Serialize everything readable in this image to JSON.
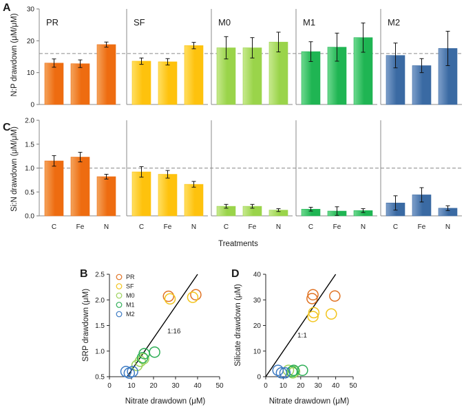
{
  "colors": {
    "PR": "#ee6c10",
    "SF": "#fec20d",
    "M0": "#9ad44a",
    "M1": "#1fb553",
    "M2": "#3a6aa3",
    "PR_light": "#f4a35c",
    "SF_light": "#ffdf61",
    "M0_light": "#c7e98e",
    "M1_light": "#6ed98f",
    "M2_light": "#7e9fca",
    "PR_circle": "#e07222",
    "SF_circle": "#f2c41c",
    "M0_circle": "#9bd259",
    "M1_circle": "#2eae56",
    "M2_circle": "#3a79c2"
  },
  "chart_data": [
    {
      "id": "A",
      "type": "bar",
      "panel_label": "A",
      "ylabel": "N:P drawdown (μM/μM)",
      "ylim": [
        0,
        30
      ],
      "yticks": [
        "0",
        "10",
        "20",
        "30"
      ],
      "reference_line": 16,
      "groups": [
        "PR",
        "SF",
        "M0",
        "M1",
        "M2"
      ],
      "categories": [
        "C",
        "Fe",
        "N"
      ],
      "series": [
        {
          "name": "PR",
          "values": [
            13.0,
            12.8,
            18.8
          ],
          "errors": [
            1.3,
            1.2,
            0.8
          ]
        },
        {
          "name": "SF",
          "values": [
            13.6,
            13.4,
            18.5
          ],
          "errors": [
            1.0,
            1.0,
            1.0
          ]
        },
        {
          "name": "M0",
          "values": [
            17.8,
            17.8,
            19.6
          ],
          "errors": [
            3.5,
            3.2,
            3.1
          ]
        },
        {
          "name": "M1",
          "values": [
            16.6,
            18.0,
            21.0
          ],
          "errors": [
            3.1,
            4.4,
            4.6
          ]
        },
        {
          "name": "M2",
          "values": [
            15.4,
            12.2,
            17.6
          ],
          "errors": [
            3.9,
            2.2,
            5.4
          ]
        }
      ]
    },
    {
      "id": "C",
      "type": "bar",
      "panel_label": "C",
      "ylabel": "Si:N drawdown (μM/μM)",
      "xlabel": "Treatments",
      "ylim": [
        0,
        2.0
      ],
      "yticks": [
        "0.0",
        "0.5",
        "1.0",
        "1.5",
        "2.0"
      ],
      "reference_line": 1.0,
      "groups": [
        "PR",
        "SF",
        "M0",
        "M1",
        "M2"
      ],
      "categories": [
        "C",
        "Fe",
        "N"
      ],
      "series": [
        {
          "name": "PR",
          "values": [
            1.15,
            1.23,
            0.82
          ],
          "errors": [
            0.11,
            0.1,
            0.05
          ]
        },
        {
          "name": "SF",
          "values": [
            0.92,
            0.87,
            0.66
          ],
          "errors": [
            0.11,
            0.08,
            0.06
          ]
        },
        {
          "name": "M0",
          "values": [
            0.2,
            0.2,
            0.12
          ],
          "errors": [
            0.04,
            0.04,
            0.03
          ]
        },
        {
          "name": "M1",
          "values": [
            0.14,
            0.1,
            0.11
          ],
          "errors": [
            0.04,
            0.09,
            0.04
          ]
        },
        {
          "name": "M2",
          "values": [
            0.27,
            0.44,
            0.16
          ],
          "errors": [
            0.15,
            0.15,
            0.05
          ]
        }
      ]
    },
    {
      "id": "B",
      "type": "scatter",
      "panel_label": "B",
      "xlabel": "Nitrate drawdown (μM)",
      "ylabel": "SRP drawdown (μM)",
      "xlim": [
        0,
        50
      ],
      "ylim": [
        0.5,
        2.5
      ],
      "xticks": [
        "0",
        "10",
        "20",
        "30",
        "40",
        "50"
      ],
      "yticks": [
        "0.5",
        "1.0",
        "1.5",
        "2.0",
        "2.5"
      ],
      "ref_line_label": "1:16",
      "legend": [
        "PR",
        "SF",
        "M0",
        "M1",
        "M2"
      ],
      "series": [
        {
          "name": "PR",
          "x": [
            26.8,
            39.2
          ],
          "y": [
            2.07,
            2.1
          ]
        },
        {
          "name": "SF",
          "x": [
            27.5,
            37.8
          ],
          "y": [
            2.02,
            2.05
          ]
        },
        {
          "name": "M0",
          "x": [
            12.5,
            14.0,
            15.5
          ],
          "y": [
            0.72,
            0.8,
            0.85
          ]
        },
        {
          "name": "M1",
          "x": [
            15.0,
            15.8,
            20.5
          ],
          "y": [
            0.87,
            0.95,
            0.98
          ]
        },
        {
          "name": "M2",
          "x": [
            7.5,
            9.0,
            10.5
          ],
          "y": [
            0.6,
            0.57,
            0.6
          ]
        }
      ],
      "ref_line": {
        "x": [
          8,
          40
        ],
        "y": [
          0.5,
          2.5
        ]
      }
    },
    {
      "id": "D",
      "type": "scatter",
      "panel_label": "D",
      "xlabel": "Nitrate drawdown (μM)",
      "ylabel": "Silicate drawdown (μM)",
      "xlim": [
        0,
        50
      ],
      "ylim": [
        0,
        40
      ],
      "xticks": [
        "0",
        "10",
        "20",
        "30",
        "40",
        "50"
      ],
      "yticks": [
        "0",
        "10",
        "20",
        "30",
        "40"
      ],
      "ref_line_label": "1:1",
      "series": [
        {
          "name": "PR",
          "x": [
            26.5,
            27.0,
            39.5
          ],
          "y": [
            30.5,
            32.0,
            31.5
          ]
        },
        {
          "name": "SF",
          "x": [
            27.0,
            27.5,
            37.5
          ],
          "y": [
            23.5,
            25.0,
            24.5
          ]
        },
        {
          "name": "M0",
          "x": [
            13.0,
            15.5,
            16.5
          ],
          "y": [
            2.5,
            1.5,
            2.0
          ]
        },
        {
          "name": "M1",
          "x": [
            15.0,
            16.0,
            21.0
          ],
          "y": [
            2.0,
            2.5,
            2.5
          ]
        },
        {
          "name": "M2",
          "x": [
            7.0,
            9.0,
            11.0
          ],
          "y": [
            2.5,
            1.5,
            1.5
          ]
        }
      ],
      "ref_line": {
        "x": [
          0,
          40
        ],
        "y": [
          0,
          40
        ]
      }
    }
  ]
}
